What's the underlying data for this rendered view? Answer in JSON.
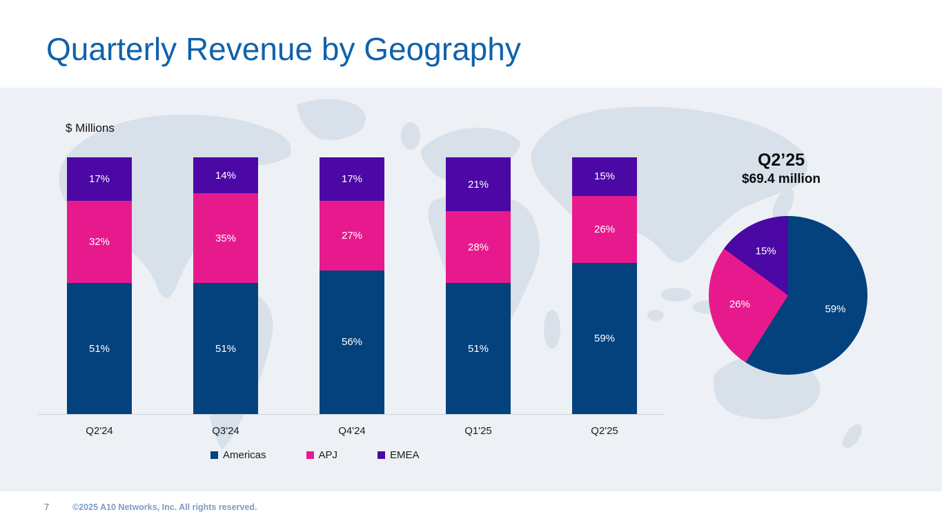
{
  "slide": {
    "title": "Quarterly Revenue by Geography",
    "units_label": "$ Millions",
    "page_number": "7",
    "footer": "©2025 A10 Networks, Inc. All rights reserved."
  },
  "colors": {
    "americas": "#04427d",
    "apj": "#e71a8d",
    "emea": "#4c08a4",
    "title_blue": "#0f62ab",
    "band_bg": "#edf1f5",
    "map_fill": "#d8e0ea",
    "axis_line": "#cfd4da"
  },
  "chart_data": [
    {
      "type": "bar",
      "stacked": true,
      "title": "Quarterly Revenue by Geography",
      "ylabel": "$ Millions",
      "categories": [
        "Q2'24",
        "Q3'24",
        "Q4'24",
        "Q1'25",
        "Q2'25"
      ],
      "series": [
        {
          "name": "Americas",
          "color_key": "americas",
          "values": [
            51,
            51,
            56,
            51,
            59
          ]
        },
        {
          "name": "APJ",
          "color_key": "apj",
          "values": [
            32,
            35,
            27,
            28,
            26
          ]
        },
        {
          "name": "EMEA",
          "color_key": "emea",
          "values": [
            17,
            14,
            17,
            21,
            15
          ]
        }
      ],
      "value_suffix": "%",
      "legend_position": "bottom",
      "grid": false
    },
    {
      "type": "pie",
      "title": "Q2’25",
      "subtitle": "$69.4 million",
      "labels": [
        "Americas",
        "APJ",
        "EMEA"
      ],
      "color_keys": [
        "americas",
        "apj",
        "emea"
      ],
      "values": [
        59,
        26,
        15
      ],
      "value_suffix": "%",
      "start_angle_deg": 0,
      "direction": "clockwise"
    }
  ]
}
